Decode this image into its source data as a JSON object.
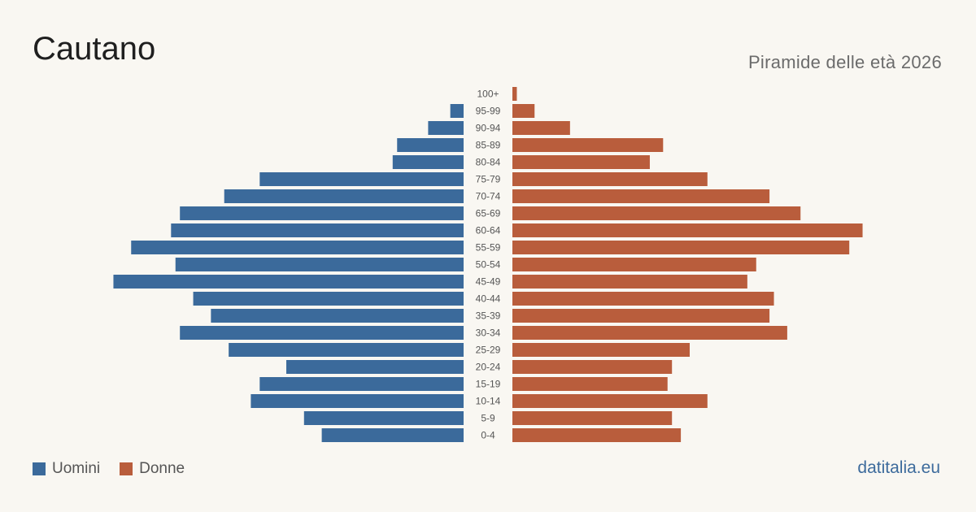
{
  "header": {
    "title": "Cautano",
    "subtitle": "Piramide delle età 2026"
  },
  "legend": {
    "men_label": "Uomini",
    "women_label": "Donne"
  },
  "brand": "datitalia.eu",
  "colors": {
    "men": "#3b6a9b",
    "women": "#b95d3c",
    "background": "#f9f7f2"
  },
  "chart_data": {
    "type": "bar",
    "orientation": "horizontal",
    "categories": [
      "100+",
      "95-99",
      "90-94",
      "85-89",
      "80-84",
      "75-79",
      "70-74",
      "65-69",
      "60-64",
      "55-59",
      "50-54",
      "45-49",
      "40-44",
      "35-39",
      "30-34",
      "25-29",
      "20-24",
      "15-19",
      "10-14",
      "5-9",
      "0-4"
    ],
    "series": [
      {
        "name": "Uomini",
        "values": [
          0,
          3,
          8,
          15,
          16,
          46,
          54,
          64,
          66,
          75,
          65,
          79,
          61,
          57,
          64,
          53,
          40,
          46,
          48,
          36,
          32
        ]
      },
      {
        "name": "Donne",
        "values": [
          1,
          5,
          13,
          34,
          31,
          44,
          58,
          65,
          79,
          76,
          55,
          53,
          59,
          58,
          62,
          40,
          36,
          35,
          44,
          36,
          38
        ]
      }
    ],
    "xlim": [
      0,
      80
    ],
    "grid": false,
    "legend_position": "bottom-left"
  }
}
